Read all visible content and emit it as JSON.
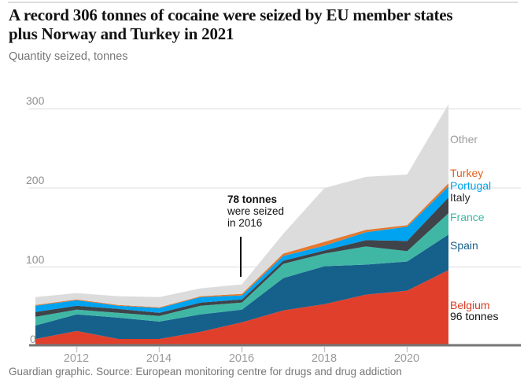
{
  "page": {
    "title_line1": "A record 306 tonnes of cocaine were seized by EU member states",
    "title_line2": "plus Norway and Turkey in 2021",
    "subtitle": "Quantity seized, tonnes",
    "footer": "Guardian graphic. Source: European monitoring centre for drugs and drug addiction"
  },
  "annotation": {
    "line1": "78 tonnes",
    "line2": "were seized",
    "line3": "in 2016"
  },
  "axes": {
    "y_ticks": [
      {
        "label": "0",
        "value": 0
      },
      {
        "label": "100",
        "value": 100
      },
      {
        "label": "200",
        "value": 200
      },
      {
        "label": "300",
        "value": 300
      }
    ],
    "x_ticks": [
      {
        "label": "2012",
        "year": 2012
      },
      {
        "label": "2014",
        "year": 2014
      },
      {
        "label": "2016",
        "year": 2016
      },
      {
        "label": "2018",
        "year": 2018
      },
      {
        "label": "2020",
        "year": 2020
      }
    ]
  },
  "legend": {
    "items": [
      {
        "label": "Other",
        "color": "#9c9c9c"
      },
      {
        "label": "Turkey",
        "color": "#e0611c"
      },
      {
        "label": "Portugal",
        "color": "#00a2e8"
      },
      {
        "label": "Italy",
        "color": "#2a2a2a"
      },
      {
        "label": "France",
        "color": "#3db6a2"
      },
      {
        "label": "Spain",
        "color": "#175e8a"
      },
      {
        "label": "Belgium",
        "color": "#d93a24"
      },
      {
        "label": "96 tonnes",
        "color": "#121212"
      }
    ]
  },
  "chart_data": {
    "type": "area",
    "stacked": true,
    "title": "A record 306 tonnes of cocaine were seized by EU member states plus Norway and Turkey in 2021",
    "ylabel": "Quantity seized, tonnes",
    "ylim": [
      0,
      310
    ],
    "gridlines": [
      100,
      200,
      300
    ],
    "legend_position": "right",
    "x": [
      2011,
      2012,
      2013,
      2014,
      2015,
      2016,
      2017,
      2018,
      2019,
      2020,
      2021
    ],
    "annotation": "78 tonnes were seized in 2016",
    "totals": [
      62,
      67,
      63,
      62,
      73,
      78,
      142,
      200,
      214,
      217,
      306
    ],
    "series": [
      {
        "name": "Belgium",
        "color": "#e0402b",
        "values": [
          9,
          19,
          9,
          9,
          18,
          30,
          45,
          53,
          65,
          70,
          96
        ]
      },
      {
        "name": "Spain",
        "color": "#16608c",
        "values": [
          17,
          21,
          27,
          22,
          22,
          16,
          41,
          48,
          38,
          37,
          45
        ]
      },
      {
        "name": "France",
        "color": "#40b7a5",
        "values": [
          11,
          6,
          6,
          7,
          11,
          9,
          18,
          16,
          23,
          13,
          27
        ]
      },
      {
        "name": "Italy",
        "color": "#3e444a",
        "values": [
          6,
          5,
          5,
          4,
          4,
          4,
          4,
          4,
          8,
          13,
          20
        ]
      },
      {
        "name": "Portugal",
        "color": "#00a3f0",
        "values": [
          8,
          7,
          4,
          6,
          7,
          5,
          6,
          6,
          10,
          18,
          14
        ]
      },
      {
        "name": "Turkey",
        "color": "#e4792f",
        "values": [
          1,
          1,
          1,
          1,
          1,
          2,
          3,
          5,
          3,
          2,
          4
        ]
      },
      {
        "name": "Other",
        "color": "#dcdcdc",
        "values": [
          10,
          8,
          11,
          13,
          10,
          12,
          25,
          68,
          67,
          64,
          100
        ]
      }
    ]
  }
}
